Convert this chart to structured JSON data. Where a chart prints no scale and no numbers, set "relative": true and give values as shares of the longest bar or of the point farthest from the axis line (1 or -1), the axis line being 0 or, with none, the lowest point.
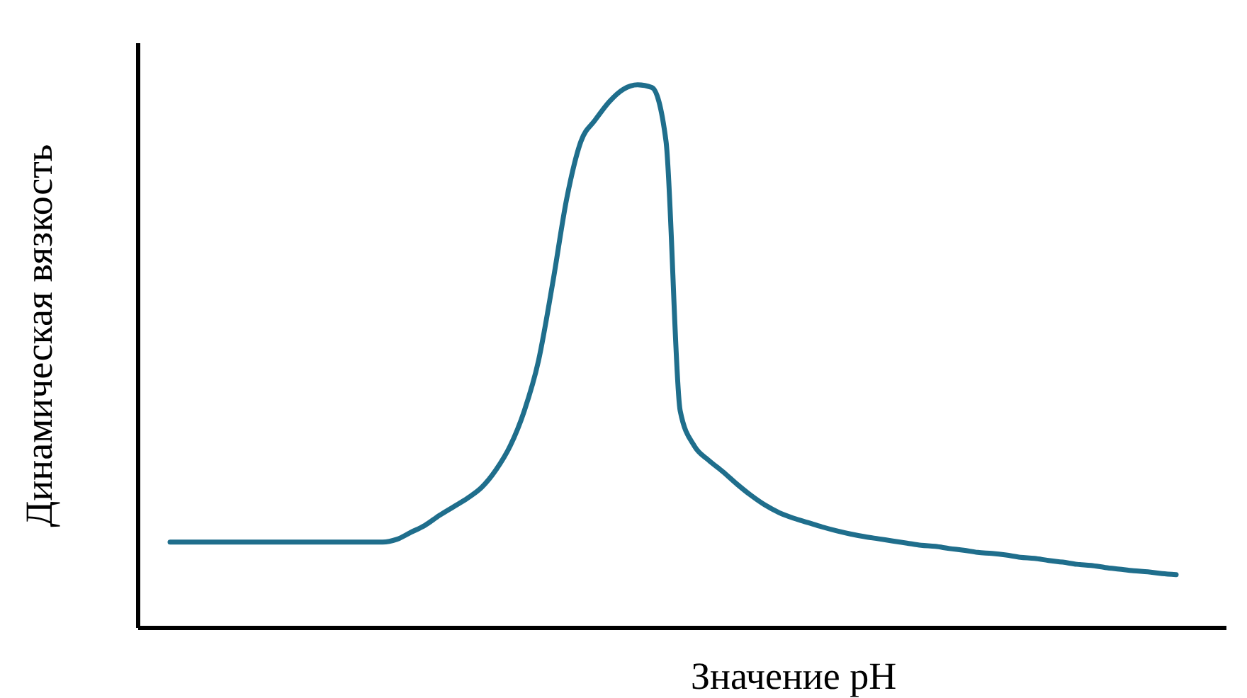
{
  "chart_data": {
    "type": "line",
    "relative": true,
    "xlabel": "Значение pH",
    "ylabel": "Динамическая вязкость",
    "categories": [
      null,
      null,
      null,
      null,
      null,
      null,
      null,
      null,
      null,
      null,
      null,
      null,
      null,
      null,
      null,
      null,
      null,
      null,
      null,
      null,
      null,
      null,
      null,
      null,
      null,
      null,
      null,
      null,
      null,
      null,
      null,
      null,
      null,
      null,
      null,
      null,
      null,
      null,
      null,
      null,
      null,
      null,
      null,
      null,
      null,
      null,
      null,
      null,
      null,
      null,
      null,
      null,
      null,
      null,
      null,
      null,
      null,
      null,
      null,
      null,
      null,
      null,
      null,
      null,
      null,
      null,
      null,
      null,
      null,
      null,
      null,
      null
    ],
    "series": [
      {
        "color": "#1f6e8c",
        "values": [
          0.157,
          0.157,
          0.157,
          0.157,
          0.157,
          0.157,
          0.157,
          0.157,
          0.157,
          0.157,
          0.157,
          0.157,
          0.157,
          0.157,
          0.157,
          0.157,
          0.162,
          0.175,
          0.188,
          0.206,
          0.222,
          0.238,
          0.258,
          0.29,
          0.334,
          0.399,
          0.491,
          0.634,
          0.791,
          0.896,
          0.935,
          0.969,
          0.992,
          1,
          0.995,
          0.896,
          0.399,
          0.334,
          0.308,
          0.287,
          0.264,
          0.243,
          0.225,
          0.211,
          0.201,
          0.193,
          0.185,
          0.178,
          0.172,
          0.167,
          0.163,
          0.159,
          0.155,
          0.151,
          0.149,
          0.145,
          0.142,
          0.138,
          0.136,
          0.133,
          0.129,
          0.127,
          0.123,
          0.12,
          0.116,
          0.114,
          0.11,
          0.107,
          0.104,
          0.102,
          0.099,
          0.097
        ]
      }
    ],
    "line_style": "solid"
  }
}
